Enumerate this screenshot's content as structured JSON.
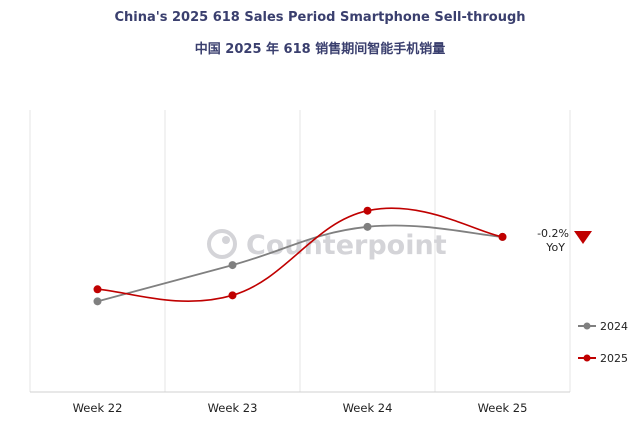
{
  "header": {
    "title_en": "China's 2025 618 Sales Period Smartphone Sell-through",
    "title_cn": "中国 2025 年 618 销售期间智能手机销量"
  },
  "watermark": "Counterpoint",
  "annotation": {
    "value": "-0.2%",
    "label": "YoY",
    "marker_icon": "down-triangle-icon",
    "marker_color": "#c00000"
  },
  "chart_data": {
    "type": "line",
    "categories": [
      "Week 22",
      "Week 23",
      "Week 24",
      "Week 25"
    ],
    "series": [
      {
        "name": "2024",
        "color": "#808080",
        "values": [
          45,
          63,
          82,
          77
        ]
      },
      {
        "name": "2025",
        "color": "#c00000",
        "values": [
          51,
          48,
          90,
          77
        ]
      }
    ],
    "ylim": [
      0,
      140
    ],
    "grid": "vertical",
    "legend": "right",
    "title": "China's 2025 618 Sales Period Smartphone Sell-through",
    "xlabel": "",
    "ylabel": ""
  }
}
